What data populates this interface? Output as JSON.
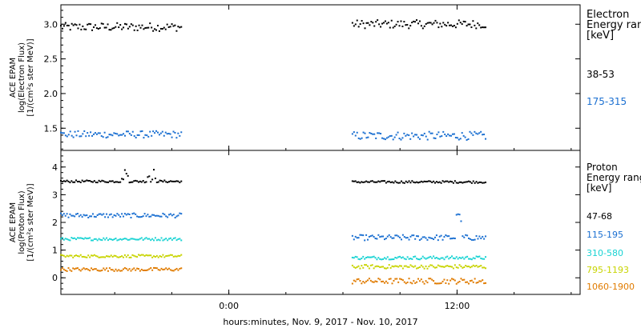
{
  "chart_data": [
    {
      "type": "scatter",
      "ylabel_lines": [
        "ACE EPAM",
        "log(Electron Flux)",
        "[1/(cm²s ster MeV)]"
      ],
      "legend_title_lines": [
        "Electron",
        "Energy range",
        "[keV]"
      ],
      "ylim": [
        1.18,
        3.28
      ],
      "yticks": [
        1.5,
        2.0,
        2.5,
        3.0
      ],
      "ytick_labels": [
        "1.5",
        "2.0",
        "2.5",
        "3.0"
      ],
      "series": [
        {
          "name": "38-53",
          "color": "#000000",
          "segments": [
            {
              "x0": 0.0,
              "x1": 12.66,
              "mean": 2.96,
              "jitter": 0.06,
              "n": 78
            },
            {
              "x0": 30.66,
              "x1": 44.66,
              "mean": 3.0,
              "jitter": 0.06,
              "n": 86
            }
          ]
        },
        {
          "name": "175-315",
          "color": "#1a6fd1",
          "segments": [
            {
              "x0": 0.0,
              "x1": 12.66,
              "mean": 1.41,
              "jitter": 0.05,
              "n": 78
            },
            {
              "x0": 30.66,
              "x1": 44.66,
              "mean": 1.39,
              "jitter": 0.06,
              "n": 86
            }
          ]
        }
      ]
    },
    {
      "type": "scatter",
      "ylabel_lines": [
        "ACE EPAM",
        "log(Proton Flux)",
        "[1/(cm²s ster MeV)]"
      ],
      "legend_title_lines": [
        "Proton",
        "Energy range",
        "[keV]"
      ],
      "ylim": [
        -0.6,
        4.6
      ],
      "yticks": [
        0,
        1,
        2,
        3,
        4
      ],
      "ytick_labels": [
        "0",
        "1",
        "2",
        "3",
        "4"
      ],
      "series": [
        {
          "name": "47-68",
          "color": "#000000",
          "segments": [
            {
              "x0": 0.0,
              "x1": 12.66,
              "mean": 3.48,
              "jitter": 0.04,
              "n": 80
            },
            {
              "x0": 30.66,
              "x1": 44.66,
              "mean": 3.46,
              "jitter": 0.04,
              "n": 88
            }
          ]
        },
        {
          "name": "115-195",
          "color": "#1a6fd1",
          "segments": [
            {
              "x0": 0.0,
              "x1": 12.66,
              "mean": 2.25,
              "jitter": 0.08,
              "n": 80
            },
            {
              "x0": 30.66,
              "x1": 44.66,
              "mean": 1.45,
              "jitter": 0.1,
              "n": 88
            }
          ]
        },
        {
          "name": "310-580",
          "color": "#19d3d3",
          "segments": [
            {
              "x0": 0.0,
              "x1": 12.66,
              "mean": 1.4,
              "jitter": 0.05,
              "n": 80
            },
            {
              "x0": 30.66,
              "x1": 44.66,
              "mean": 0.72,
              "jitter": 0.06,
              "n": 88
            }
          ]
        },
        {
          "name": "795-1193",
          "color": "#c8d400",
          "segments": [
            {
              "x0": 0.0,
              "x1": 12.66,
              "mean": 0.78,
              "jitter": 0.05,
              "n": 80
            },
            {
              "x0": 30.66,
              "x1": 44.66,
              "mean": 0.4,
              "jitter": 0.07,
              "n": 88
            }
          ]
        },
        {
          "name": "1060-1900",
          "color": "#e07b00",
          "segments": [
            {
              "x0": 0.0,
              "x1": 12.66,
              "mean": 0.3,
              "jitter": 0.06,
              "n": 80
            },
            {
              "x0": 30.66,
              "x1": 44.66,
              "mean": -0.12,
              "jitter": 0.1,
              "n": 88
            }
          ]
        }
      ]
    }
  ],
  "x_axis": {
    "xlim": [
      0,
      54.6
    ],
    "ticks": [
      17.66,
      41.66
    ],
    "tick_labels": [
      "0:00",
      "12:00"
    ],
    "title": "hours:minutes, Nov.  9, 2017 - Nov. 10, 2017"
  }
}
